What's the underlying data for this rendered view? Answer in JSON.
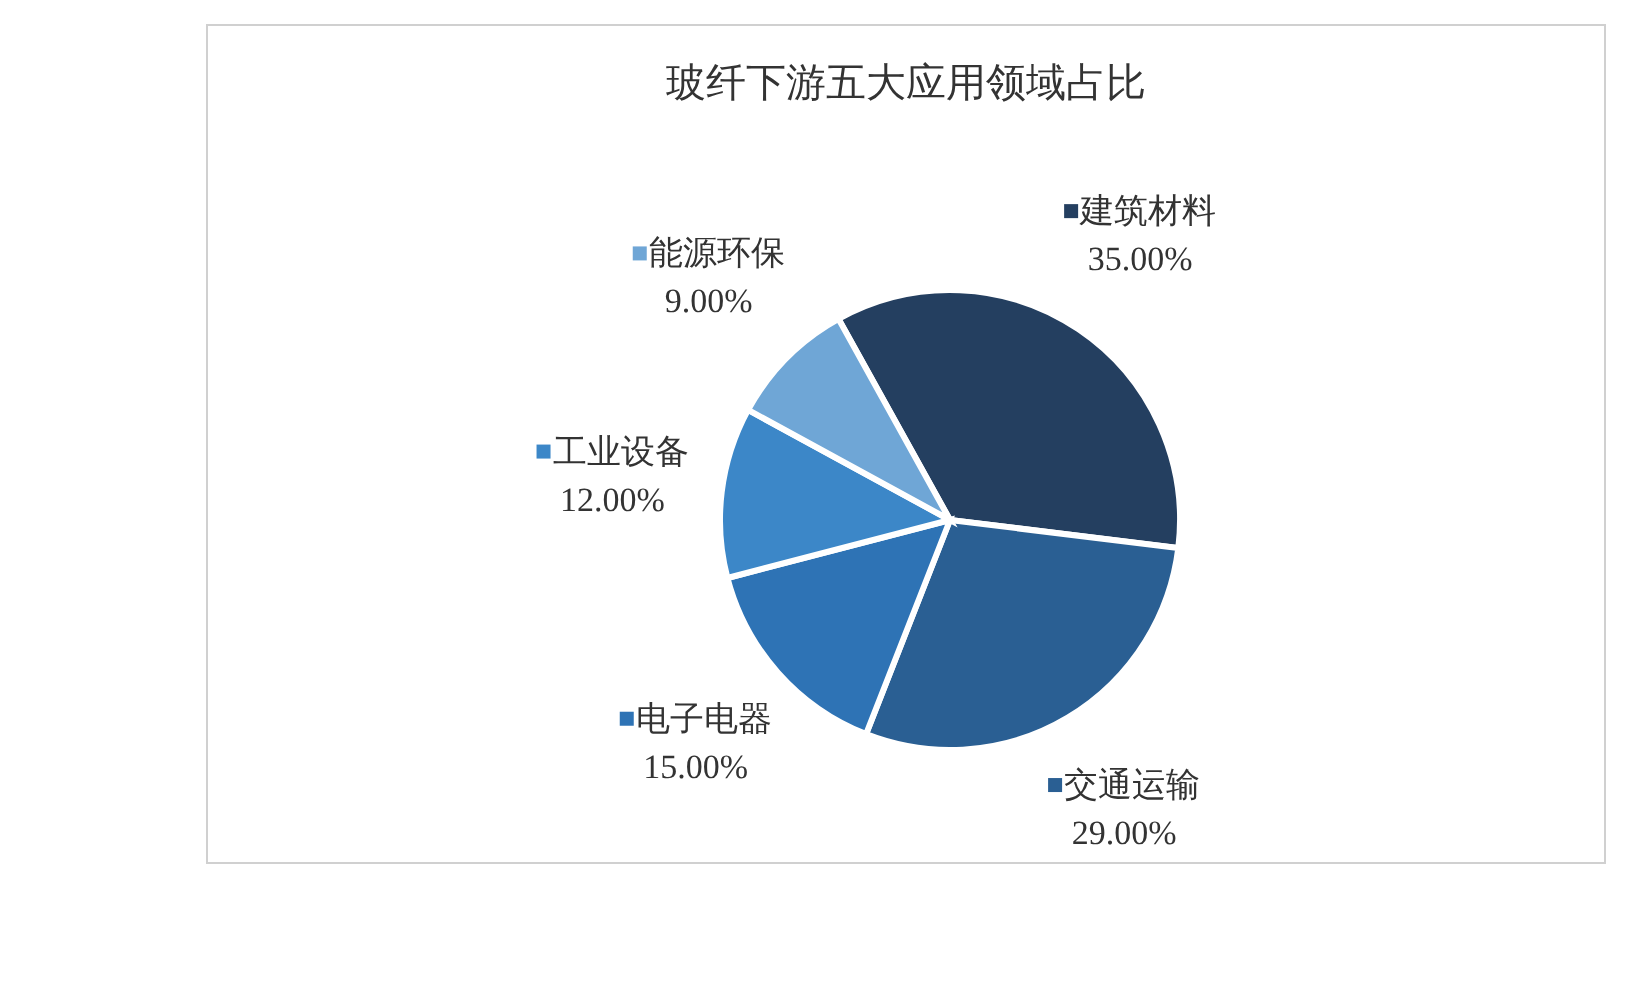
{
  "chart_data": {
    "type": "pie",
    "title": "玻纤下游五大应用领域占比",
    "categories": [
      "建筑材料",
      "交通运输",
      "电子电器",
      "工业设备",
      "能源环保"
    ],
    "values": [
      35,
      29,
      15,
      12,
      9
    ],
    "value_labels": [
      "35.00%",
      "29.00%",
      "15.00%",
      "12.00%",
      "9.00%"
    ],
    "colors": [
      "#243f60",
      "#2a5f93",
      "#2e73b5",
      "#3c87c8",
      "#6fa6d6"
    ],
    "legend": "top left"
  }
}
